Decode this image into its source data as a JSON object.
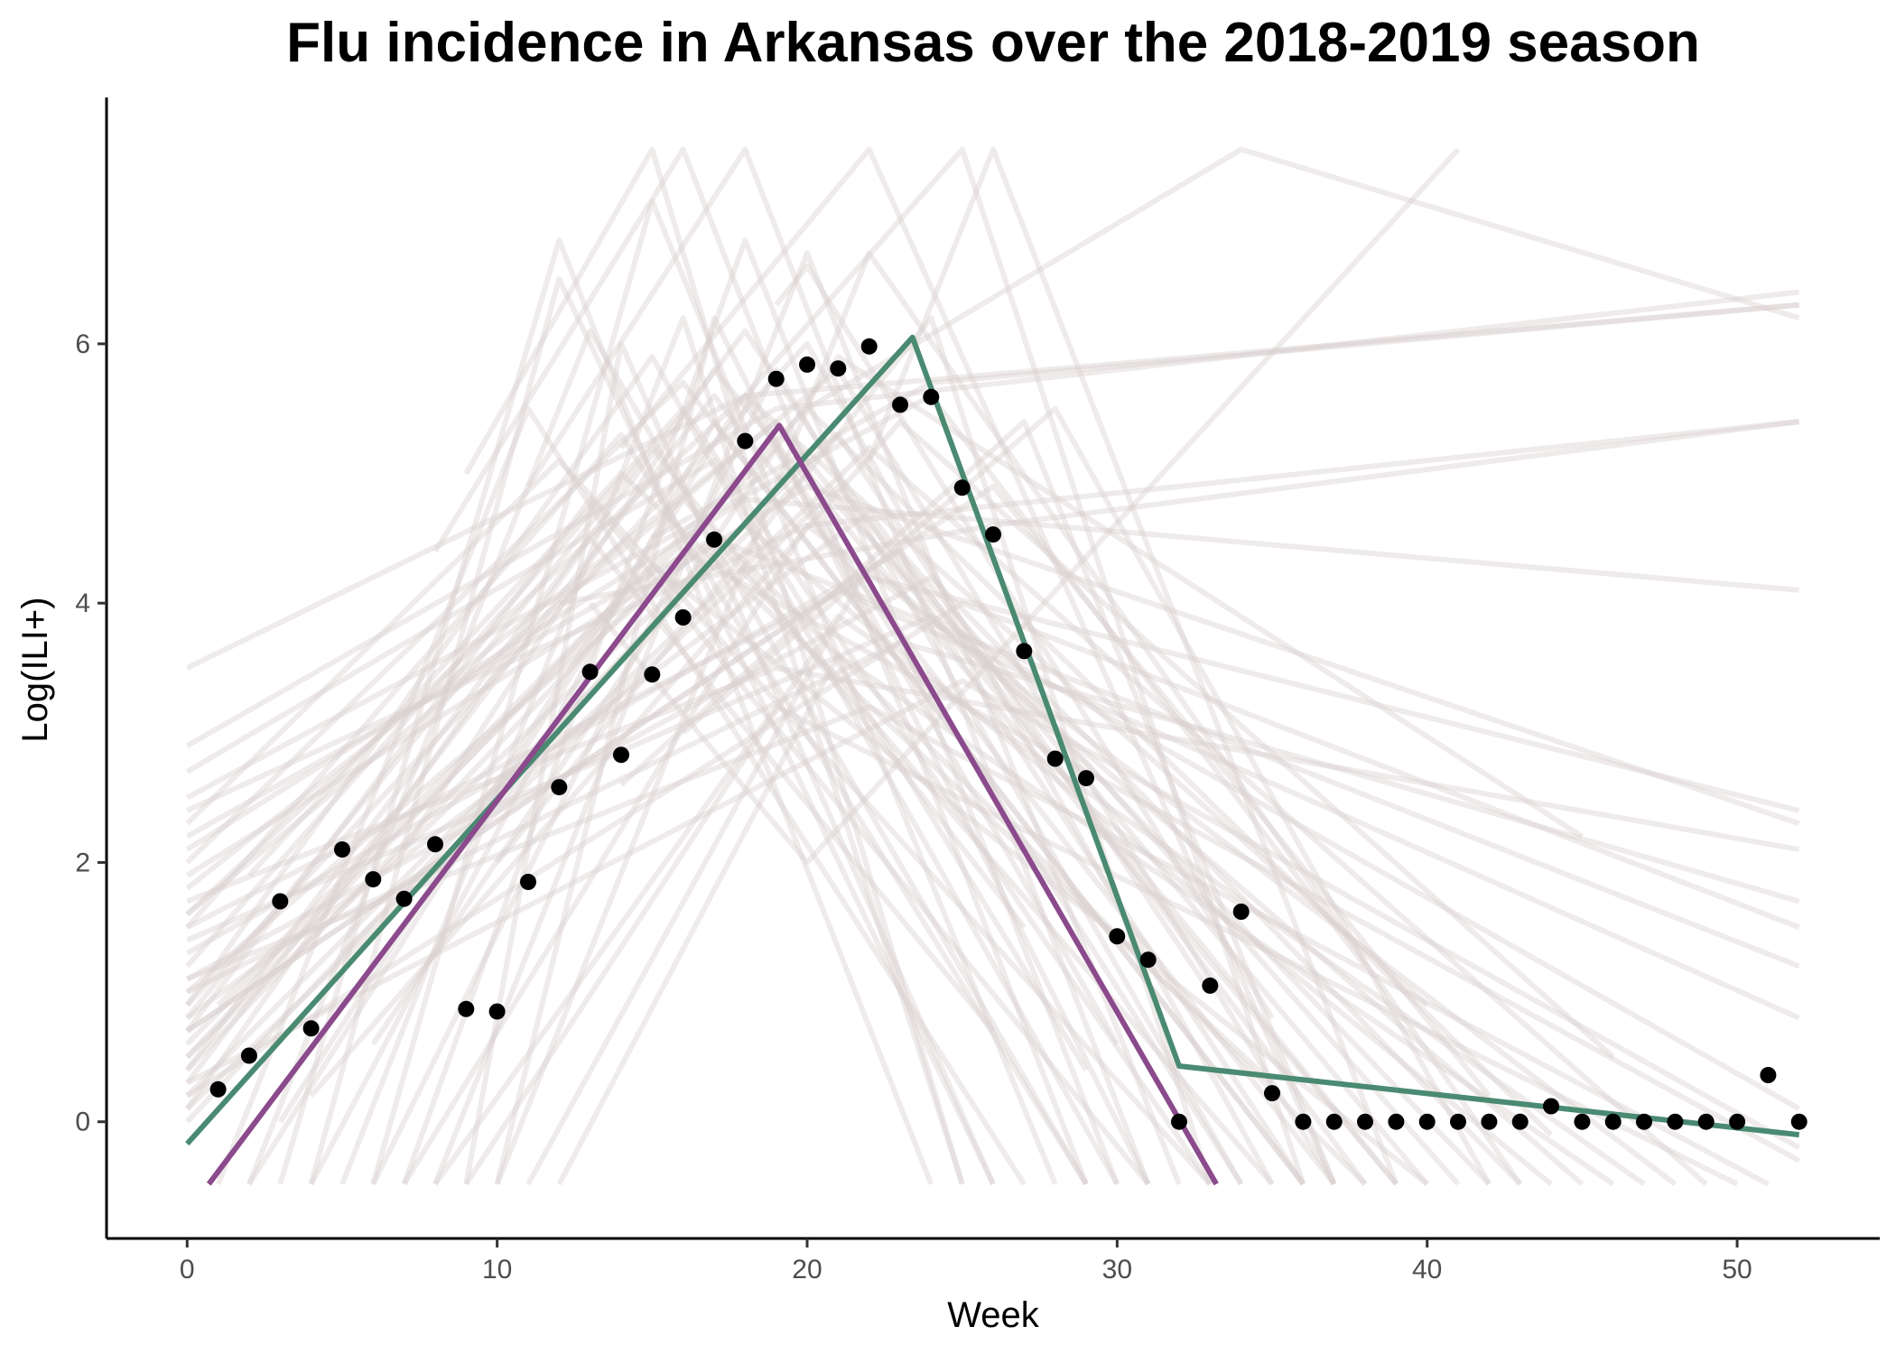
{
  "chart_data": {
    "type": "line",
    "title": "Flu incidence in Arkansas over the 2018-2019 season",
    "xlabel": "Week",
    "ylabel": "Log(ILI+)",
    "xlim": [
      -2.6,
      54.6
    ],
    "ylim": [
      -0.9,
      7.9
    ],
    "xticks": [
      0,
      10,
      20,
      30,
      40,
      50
    ],
    "yticks": [
      0,
      2,
      4,
      6
    ],
    "grid": false,
    "legend": "none",
    "observed": {
      "x": [
        1,
        2,
        3,
        4,
        5,
        6,
        7,
        8,
        9,
        10,
        11,
        12,
        13,
        14,
        15,
        16,
        17,
        18,
        19,
        20,
        21,
        22,
        23,
        24,
        25,
        26,
        27,
        28,
        29,
        30,
        31,
        32,
        33,
        34,
        35,
        36,
        37,
        38,
        39,
        40,
        41,
        42,
        43,
        44,
        45,
        46,
        47,
        48,
        49,
        50,
        51,
        52
      ],
      "y": [
        0.25,
        0.51,
        1.7,
        0.72,
        2.1,
        1.87,
        1.72,
        2.14,
        0.87,
        0.85,
        1.85,
        2.58,
        3.47,
        2.83,
        3.45,
        3.89,
        4.49,
        5.25,
        5.73,
        5.84,
        5.81,
        5.98,
        5.53,
        5.59,
        4.89,
        4.53,
        3.63,
        2.8,
        2.65,
        1.43,
        1.25,
        0.0,
        1.05,
        1.62,
        0.22,
        0.0,
        0.0,
        0.0,
        0.0,
        0.0,
        0.0,
        0.0,
        0.0,
        0.12,
        0.0,
        0.0,
        0.0,
        0.0,
        0.0,
        0.0,
        0.36,
        0.0
      ],
      "color": "#000000"
    },
    "fits": [
      {
        "x": [
          0,
          23.4,
          32.0,
          52.0
        ],
        "y": [
          -0.17,
          6.05,
          0.43,
          -0.1
        ],
        "color": "#4a8a72"
      },
      {
        "x": [
          0.7,
          19.1,
          33.2
        ],
        "y": [
          -0.48,
          5.37,
          -0.48
        ],
        "color": "#8b4a8c"
      }
    ],
    "samples_color": "#d8cfcf",
    "samples": [
      {
        "x": [
          0,
          17,
          37
        ],
        "y": [
          0.3,
          5.6,
          -0.48
        ]
      },
      {
        "x": [
          0,
          19,
          34
        ],
        "y": [
          0.6,
          5.2,
          -0.48
        ]
      },
      {
        "x": [
          0,
          15,
          30
        ],
        "y": [
          0.9,
          5.9,
          -0.48
        ]
      },
      {
        "x": [
          0,
          21,
          40
        ],
        "y": [
          0.1,
          4.9,
          -0.48
        ]
      },
      {
        "x": [
          0,
          16,
          33
        ],
        "y": [
          1.2,
          5.5,
          -0.48
        ]
      },
      {
        "x": [
          0,
          18,
          36
        ],
        "y": [
          0.4,
          6.1,
          -0.48
        ]
      },
      {
        "x": [
          0,
          22,
          38
        ],
        "y": [
          0.8,
          4.7,
          -0.48
        ]
      },
      {
        "x": [
          0,
          14,
          29
        ],
        "y": [
          1.5,
          5.3,
          -0.48
        ]
      },
      {
        "x": [
          0,
          20,
          42
        ],
        "y": [
          0.2,
          5.0,
          -0.48
        ]
      },
      {
        "x": [
          0,
          17,
          35
        ],
        "y": [
          1.0,
          4.5,
          -0.48
        ]
      },
      {
        "x": [
          0,
          19,
          39
        ],
        "y": [
          1.8,
          5.4,
          -0.48
        ]
      },
      {
        "x": [
          0,
          13,
          31
        ],
        "y": [
          0.7,
          4.8,
          -0.48
        ]
      },
      {
        "x": [
          0,
          23,
          41
        ],
        "y": [
          1.3,
          4.4,
          -0.48
        ]
      },
      {
        "x": [
          0,
          16,
          36
        ],
        "y": [
          2.0,
          5.7,
          -0.48
        ]
      },
      {
        "x": [
          0,
          18,
          44
        ],
        "y": [
          0.0,
          4.6,
          -0.48
        ]
      },
      {
        "x": [
          0,
          21,
          37
        ],
        "y": [
          1.6,
          5.8,
          -0.48
        ]
      },
      {
        "x": [
          0,
          15,
          40
        ],
        "y": [
          0.5,
          4.3,
          -0.48
        ]
      },
      {
        "x": [
          0,
          24,
          43
        ],
        "y": [
          1.1,
          4.2,
          -0.48
        ]
      },
      {
        "x": [
          0,
          12,
          33
        ],
        "y": [
          2.3,
          5.1,
          -0.48
        ]
      },
      {
        "x": [
          0,
          20,
          35
        ],
        "y": [
          0.9,
          6.0,
          -0.48
        ]
      },
      {
        "x": [
          3,
          12,
          24
        ],
        "y": [
          -0.48,
          6.8,
          -0.48
        ]
      },
      {
        "x": [
          4,
          12,
          26
        ],
        "y": [
          -0.48,
          6.5,
          -0.48
        ]
      },
      {
        "x": [
          6,
          15,
          28
        ],
        "y": [
          -0.48,
          7.1,
          -0.48
        ]
      },
      {
        "x": [
          7,
          18,
          30
        ],
        "y": [
          -0.48,
          6.8,
          -0.48
        ]
      },
      {
        "x": [
          5,
          16,
          25
        ],
        "y": [
          -0.48,
          6.2,
          -0.48
        ]
      },
      {
        "x": [
          8,
          20,
          32
        ],
        "y": [
          -0.48,
          6.7,
          -0.48
        ]
      },
      {
        "x": [
          9,
          14,
          26
        ],
        "y": [
          -0.48,
          6.0,
          -0.48
        ]
      },
      {
        "x": [
          2,
          13,
          29
        ],
        "y": [
          -0.48,
          6.1,
          -0.48
        ]
      },
      {
        "x": [
          10,
          17,
          31
        ],
        "y": [
          -0.48,
          6.2,
          -0.48
        ]
      },
      {
        "x": [
          1,
          11,
          27
        ],
        "y": [
          -0.48,
          5.5,
          -0.48
        ]
      },
      {
        "x": [
          6,
          19,
          34
        ],
        "y": [
          -0.48,
          5.8,
          -0.48
        ]
      },
      {
        "x": [
          4,
          17,
          36
        ],
        "y": [
          -0.48,
          5.4,
          -0.48
        ]
      },
      {
        "x": [
          2,
          16,
          38
        ],
        "y": [
          -0.48,
          4.8,
          -0.48
        ]
      },
      {
        "x": [
          0,
          18,
          52
        ],
        "y": [
          3.5,
          5.6,
          6.3
        ]
      },
      {
        "x": [
          0,
          19,
          52
        ],
        "y": [
          2.9,
          5.5,
          6.4
        ]
      },
      {
        "x": [
          0,
          20,
          52
        ],
        "y": [
          2.4,
          4.6,
          5.4
        ]
      },
      {
        "x": [
          0,
          18,
          52
        ],
        "y": [
          2.1,
          4.8,
          4.1
        ]
      },
      {
        "x": [
          0,
          22,
          52
        ],
        "y": [
          1.5,
          4.2,
          2.4
        ]
      },
      {
        "x": [
          0,
          20,
          52
        ],
        "y": [
          1.9,
          4.9,
          2.3
        ]
      },
      {
        "x": [
          0,
          23,
          52
        ],
        "y": [
          1.0,
          3.7,
          1.7
        ]
      },
      {
        "x": [
          0,
          17,
          52
        ],
        "y": [
          2.2,
          4.5,
          1.2
        ]
      },
      {
        "x": [
          0,
          21,
          52
        ],
        "y": [
          0.7,
          4.1,
          0.8
        ]
      },
      {
        "x": [
          0,
          24,
          52
        ],
        "y": [
          1.4,
          3.9,
          0.1
        ]
      },
      {
        "x": [
          0,
          16,
          52
        ],
        "y": [
          0.4,
          4.4,
          -0.3
        ]
      },
      {
        "x": [
          0,
          19,
          52
        ],
        "y": [
          1.7,
          3.5,
          2.1
        ]
      },
      {
        "x": [
          0,
          25,
          52
        ],
        "y": [
          0.2,
          4.0,
          1.5
        ]
      },
      {
        "x": [
          10,
          22,
          43
        ],
        "y": [
          -0.48,
          6.7,
          -0.48
        ]
      },
      {
        "x": [
          7,
          20,
          48
        ],
        "y": [
          -0.48,
          4.6,
          -0.48
        ]
      },
      {
        "x": [
          11,
          22,
          45
        ],
        "y": [
          -0.48,
          4.3,
          -0.48
        ]
      },
      {
        "x": [
          9,
          21,
          47
        ],
        "y": [
          -0.48,
          3.9,
          -0.48
        ]
      },
      {
        "x": [
          12,
          21,
          46
        ],
        "y": [
          -0.48,
          3.6,
          -0.48
        ]
      },
      {
        "x": [
          8,
          19,
          50
        ],
        "y": [
          -0.48,
          3.2,
          -0.48
        ]
      },
      {
        "x": [
          16,
          28,
          42
        ],
        "y": [
          3.0,
          5.5,
          -0.48
        ]
      },
      {
        "x": [
          10,
          24,
          33
        ],
        "y": [
          2.0,
          6.2,
          -0.48
        ]
      },
      {
        "x": [
          14,
          27,
          37
        ],
        "y": [
          2.6,
          5.4,
          -0.48
        ]
      },
      {
        "x": [
          13,
          20,
          41
        ],
        "y": [
          4.0,
          2.0,
          7.5
        ]
      },
      {
        "x": [
          19,
          20,
          35
        ],
        "y": [
          6.3,
          6.6,
          0.8
        ]
      },
      {
        "x": [
          8,
          16,
          29
        ],
        "y": [
          4.4,
          7.5,
          -0.48
        ]
      },
      {
        "x": [
          11,
          18,
          31
        ],
        "y": [
          4.9,
          7.5,
          -0.48
        ]
      },
      {
        "x": [
          14,
          22,
          37
        ],
        "y": [
          5.2,
          7.5,
          -0.48
        ]
      },
      {
        "x": [
          18,
          25,
          36
        ],
        "y": [
          5.6,
          7.5,
          -0.48
        ]
      },
      {
        "x": [
          9,
          15,
          25
        ],
        "y": [
          5.0,
          7.5,
          -0.48
        ]
      },
      {
        "x": [
          20,
          34,
          52
        ],
        "y": [
          5.5,
          7.5,
          6.2
        ]
      },
      {
        "x": [
          22,
          26,
          39
        ],
        "y": [
          5.1,
          7.5,
          -0.48
        ]
      },
      {
        "x": [
          15,
          24,
          52
        ],
        "y": [
          4.5,
          5.7,
          6.3
        ]
      },
      {
        "x": [
          12,
          26,
          52
        ],
        "y": [
          4.0,
          4.6,
          5.4
        ]
      },
      {
        "x": [
          6,
          21,
          45
        ],
        "y": [
          0.6,
          5.9,
          2.2
        ]
      },
      {
        "x": [
          3,
          18,
          40
        ],
        "y": [
          0.0,
          5.6,
          0.9
        ]
      },
      {
        "x": [
          5,
          22,
          49
        ],
        "y": [
          1.3,
          5.2,
          -0.48
        ]
      },
      {
        "x": [
          2,
          14,
          35
        ],
        "y": [
          1.9,
          5.0,
          0.3
        ]
      },
      {
        "x": [
          1,
          20,
          44
        ],
        "y": [
          0.9,
          5.5,
          -0.1
        ]
      },
      {
        "x": [
          7,
          17,
          39
        ],
        "y": [
          2.1,
          5.8,
          -0.48
        ]
      },
      {
        "x": [
          4,
          23,
          46
        ],
        "y": [
          0.2,
          5.4,
          0.5
        ]
      },
      {
        "x": [
          0,
          15,
          27
        ],
        "y": [
          0.8,
          5.2,
          1.5
        ]
      },
      {
        "x": [
          0,
          18,
          30
        ],
        "y": [
          1.6,
          5.6,
          0.6
        ]
      },
      {
        "x": [
          0,
          21,
          33
        ],
        "y": [
          0.5,
          5.3,
          1.0
        ]
      },
      {
        "x": [
          0,
          26,
          42
        ],
        "y": [
          0.7,
          4.9,
          0.2
        ]
      },
      {
        "x": [
          0,
          24,
          38
        ],
        "y": [
          2.5,
          5.6,
          1.2
        ]
      },
      {
        "x": [
          0,
          13,
          26
        ],
        "y": [
          0.1,
          4.5,
          0.7
        ]
      },
      {
        "x": [
          0,
          17,
          29
        ],
        "y": [
          2.7,
          5.1,
          0.4
        ]
      },
      {
        "x": [
          0,
          22,
          51
        ],
        "y": [
          1.1,
          3.2,
          -0.48
        ]
      },
      {
        "x": [
          0,
          25,
          52
        ],
        "y": [
          0.3,
          3.4,
          -0.2
        ]
      }
    ]
  }
}
